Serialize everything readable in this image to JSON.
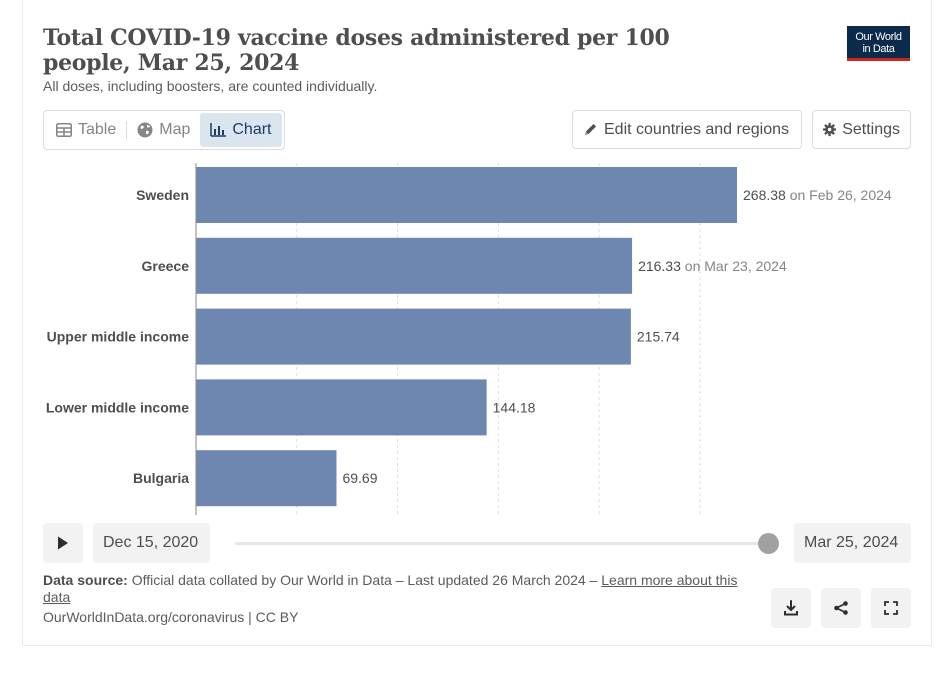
{
  "header": {
    "title": "Total COVID-19 vaccine doses administered per 100 people, Mar 25, 2024",
    "subtitle": "All doses, including boosters, are counted individually.",
    "logo_line1": "Our World",
    "logo_line2": "in Data"
  },
  "tabs": [
    {
      "label": "Table",
      "icon": "table-icon"
    },
    {
      "label": "Map",
      "icon": "globe-icon"
    },
    {
      "label": "Chart",
      "icon": "bar-chart-icon",
      "active": true
    }
  ],
  "actions": {
    "edit_label": "Edit countries and regions",
    "settings_label": "Settings"
  },
  "chart_data": {
    "type": "bar",
    "orientation": "horizontal",
    "categories": [
      "Sweden",
      "Greece",
      "Upper middle income",
      "Lower middle income",
      "Bulgaria"
    ],
    "values": [
      268.38,
      216.33,
      215.74,
      144.18,
      69.69
    ],
    "value_labels": [
      "268.38",
      "216.33",
      "215.74",
      "144.18",
      "69.69"
    ],
    "date_notes": [
      "on Feb 26, 2024",
      "on Mar 23, 2024",
      "",
      "",
      ""
    ],
    "xlim": [
      0,
      268.38
    ],
    "grid": true,
    "bar_color": "#6d87b0"
  },
  "timeline": {
    "start_date": "Dec 15, 2020",
    "end_date": "Mar 25, 2024"
  },
  "footer": {
    "source_label": "Data source:",
    "source_text": "Official data collated by Our World in Data – Last updated 26 March 2024 –",
    "learn_more": "Learn more about this data",
    "url": "OurWorldInData.org/coronavirus | CC BY"
  },
  "colors": {
    "accent": "#1d3d63",
    "bar": "#6d87b0",
    "logo_bg": "#0c2a4b",
    "logo_stripe": "#ce261e"
  }
}
